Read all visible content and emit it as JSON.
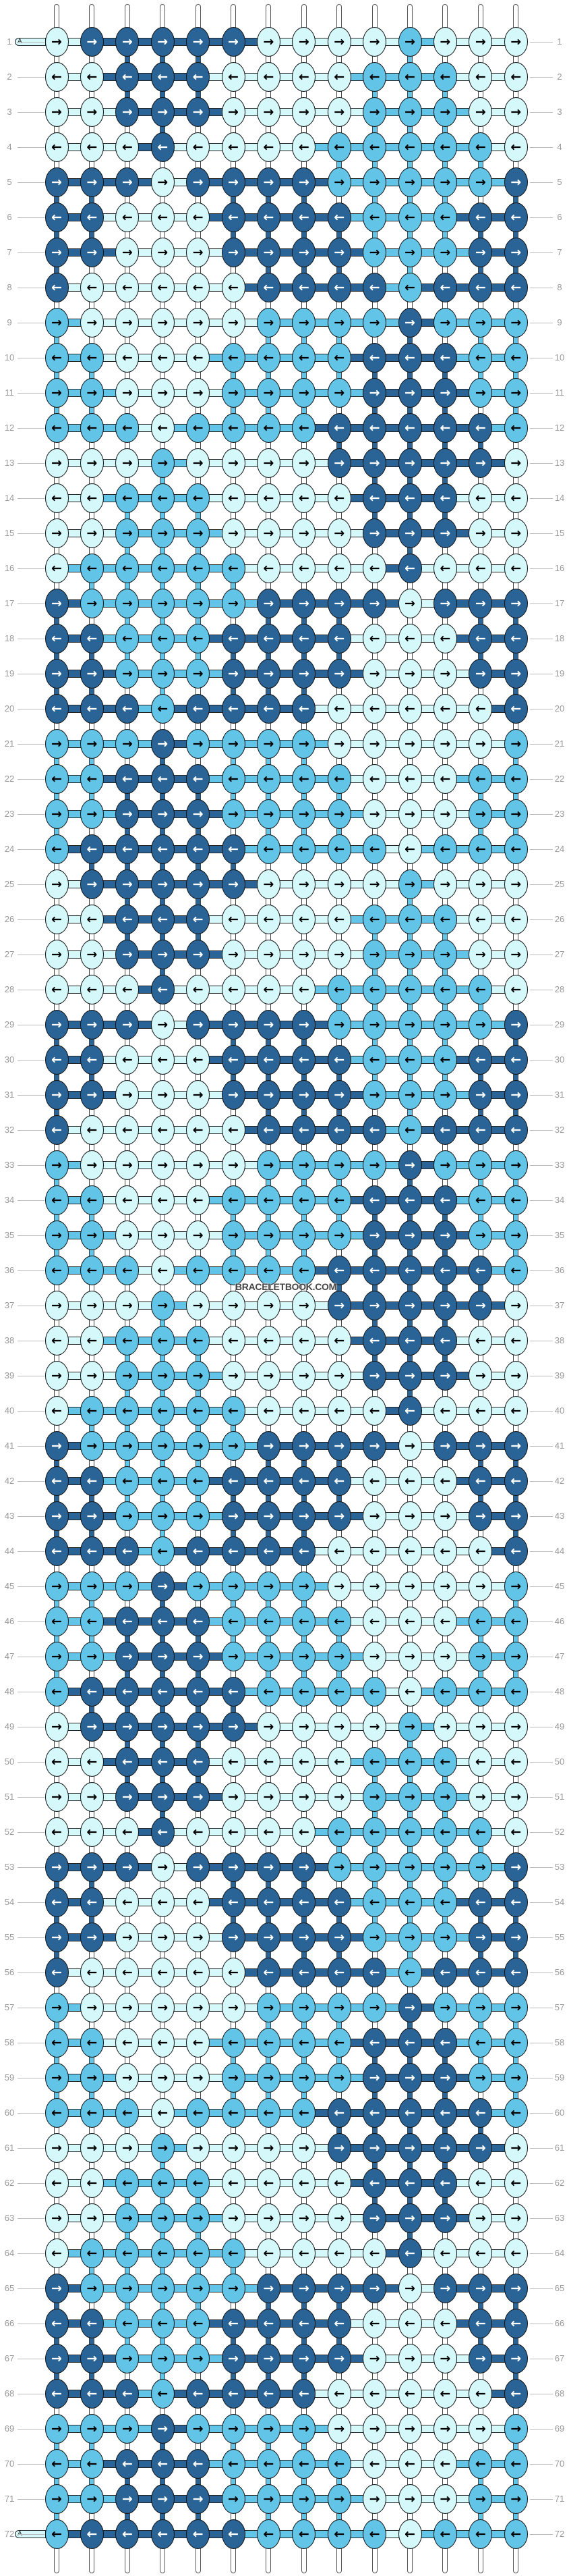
{
  "colors": {
    "L": "#d5f8fa",
    "M": "#62c4e6",
    "D": "#2a6496"
  },
  "arrow_colors": {
    "L": "#000000",
    "M": "#000000",
    "D": "#ffffff"
  },
  "arrows": {
    "R": "→",
    "L": "←"
  },
  "strand_label": "A",
  "watermark": "BRACELETBOOK.COM",
  "rows": [
    {
      "label": "1",
      "colors": "LDDDDDLLLLMLLL",
      "dir": "R"
    },
    {
      "label": "2",
      "colors": "LLDDDLLLLMMMLL",
      "dir": "L"
    },
    {
      "label": "3",
      "colors": "LLDDDLLLLMMMLL",
      "dir": "R"
    },
    {
      "label": "4",
      "colors": "LLLDLLLLMMMMML",
      "dir": "L"
    },
    {
      "label": "5",
      "colors": "DDDLDDDDMMMMMD",
      "dir": "R"
    },
    {
      "label": "6",
      "colors": "DDLLLDDDDMMMDD",
      "dir": "L"
    },
    {
      "label": "7",
      "colors": "DDLLLDDDDMMMDD",
      "dir": "R"
    },
    {
      "label": "8",
      "colors": "DLLLLLDDDDMDDD",
      "dir": "L"
    },
    {
      "label": "9",
      "colors": "MLLLLLMMMMDMMM",
      "dir": "R"
    },
    {
      "label": "10",
      "colors": "MMLLLMMMMDDDMM",
      "dir": "L"
    },
    {
      "label": "11",
      "colors": "MMLLLMMMMDDDMM",
      "dir": "R"
    },
    {
      "label": "12",
      "colors": "MMMLMMMMDDDDDM",
      "dir": "L"
    },
    {
      "label": "13",
      "colors": "LLLMLLLLDDDDDL",
      "dir": "R"
    },
    {
      "label": "14",
      "colors": "LLMMMLLLLDDDLL",
      "dir": "L"
    },
    {
      "label": "15",
      "colors": "LLMMMLLLLDDDLL",
      "dir": "R"
    },
    {
      "label": "16",
      "colors": "LMMMMMLLLLDLLL",
      "dir": "L"
    },
    {
      "label": "17",
      "colors": "DMMMMMDDDDLDDD",
      "dir": "R"
    },
    {
      "label": "18",
      "colors": "DDMMMDDDDLLLDD",
      "dir": "L"
    },
    {
      "label": "19",
      "colors": "DDMMMDDDDLLLDD",
      "dir": "R"
    },
    {
      "label": "20",
      "colors": "DDDMDDDDLLLLLD",
      "dir": "L"
    },
    {
      "label": "21",
      "colors": "MMMDMMMMLLLLLM",
      "dir": "R"
    },
    {
      "label": "22",
      "colors": "MMDDDMMMMLLLMM",
      "dir": "L"
    },
    {
      "label": "23",
      "colors": "MMDDDMMMMLLLMM",
      "dir": "R"
    },
    {
      "label": "24",
      "colors": "MDDDDDMMMMLMMM",
      "dir": "L"
    },
    {
      "label": "25",
      "colors": "LDDDDDLLLLMLLL",
      "dir": "R"
    },
    {
      "label": "26",
      "colors": "LLDDDLLLLMMMLL",
      "dir": "L"
    },
    {
      "label": "27",
      "colors": "LLDDDLLLLMMMLL",
      "dir": "R"
    },
    {
      "label": "28",
      "colors": "LLLDLLLLMMMMML",
      "dir": "L"
    },
    {
      "label": "29",
      "colors": "DDDLDDDDMMMMMD",
      "dir": "R"
    },
    {
      "label": "30",
      "colors": "DDLLLDDDDMMMDD",
      "dir": "L"
    },
    {
      "label": "31",
      "colors": "DDLLLDDDDMMMDD",
      "dir": "R"
    },
    {
      "label": "32",
      "colors": "DLLLLLDDDDMDDD",
      "dir": "L"
    },
    {
      "label": "33",
      "colors": "MLLLLLMMMMDMMM",
      "dir": "R"
    },
    {
      "label": "34",
      "colors": "MMLLLMMMMDDDMM",
      "dir": "L"
    },
    {
      "label": "35",
      "colors": "MMLLLMMMMDDDMM",
      "dir": "R"
    },
    {
      "label": "36",
      "colors": "MMMLMMMMDDDDDM",
      "dir": "L"
    },
    {
      "label": "37",
      "colors": "LLLMLLLLDDDDDL",
      "dir": "R"
    },
    {
      "label": "38",
      "colors": "LLMMMLLLLDDDLL",
      "dir": "L"
    },
    {
      "label": "39",
      "colors": "LLMMMLLLLDDDLL",
      "dir": "R"
    },
    {
      "label": "40",
      "colors": "LMMMMMLLLLDLLL",
      "dir": "L"
    },
    {
      "label": "41",
      "colors": "DMMMMMDDDDLDDD",
      "dir": "R"
    },
    {
      "label": "42",
      "colors": "DDMMMDDDDLLLDD",
      "dir": "L"
    },
    {
      "label": "43",
      "colors": "DDMMMDDDDLLLDD",
      "dir": "R"
    },
    {
      "label": "44",
      "colors": "DDDMDDDDLLLLLD",
      "dir": "L"
    },
    {
      "label": "45",
      "colors": "MMMDMMMMLLLLLM",
      "dir": "R"
    },
    {
      "label": "46",
      "colors": "MMDDDMMMMLLLMM",
      "dir": "L"
    },
    {
      "label": "47",
      "colors": "MMDDDMMMMLLLMM",
      "dir": "R"
    },
    {
      "label": "48",
      "colors": "MDDDDDMMMMLMMM",
      "dir": "L"
    },
    {
      "label": "49",
      "colors": "LDDDDDLLLLMLLL",
      "dir": "R"
    },
    {
      "label": "50",
      "colors": "LLDDDLLLLMMMLL",
      "dir": "L"
    },
    {
      "label": "51",
      "colors": "LLDDDLLLLMMMLL",
      "dir": "R"
    },
    {
      "label": "52",
      "colors": "LLLDLLLLMMMMML",
      "dir": "L"
    },
    {
      "label": "53",
      "colors": "DDDLDDDDMMMMMD",
      "dir": "R"
    },
    {
      "label": "54",
      "colors": "DDLLLDDDDMMMDD",
      "dir": "L"
    },
    {
      "label": "55",
      "colors": "DDLLLDDDDMMMDD",
      "dir": "R"
    },
    {
      "label": "56",
      "colors": "DLLLLLDDDDMDDD",
      "dir": "L"
    },
    {
      "label": "57",
      "colors": "MLLLLLMMMMDMMM",
      "dir": "R"
    },
    {
      "label": "58",
      "colors": "MMLLLMMMMDDDMM",
      "dir": "L"
    },
    {
      "label": "59",
      "colors": "MMLLLMMMMDDDMM",
      "dir": "R"
    },
    {
      "label": "60",
      "colors": "MMMLMMMMDDDDDM",
      "dir": "L"
    },
    {
      "label": "61",
      "colors": "LLLMLLLLDDDDDL",
      "dir": "R"
    },
    {
      "label": "62",
      "colors": "LLMMMLLLLDDDLL",
      "dir": "L"
    },
    {
      "label": "63",
      "colors": "LLMMMLLLLDDDLL",
      "dir": "R"
    },
    {
      "label": "64",
      "colors": "LMMMMMLLLLDLLL",
      "dir": "L"
    },
    {
      "label": "65",
      "colors": "DMMMMMDDDDLDDD",
      "dir": "R"
    },
    {
      "label": "66",
      "colors": "DDMMMDDDDLLLDD",
      "dir": "L"
    },
    {
      "label": "67",
      "colors": "DDMMMDDDDLLLDD",
      "dir": "R"
    },
    {
      "label": "68",
      "colors": "DDDMDDDDLLLLLD",
      "dir": "L"
    },
    {
      "label": "69",
      "colors": "MMMDMMMMLLLLLM",
      "dir": "R"
    },
    {
      "label": "70",
      "colors": "MMDDDMMMMLLLMM",
      "dir": "L"
    },
    {
      "label": "71",
      "colors": "MMDDDMMMMLLLMM",
      "dir": "R"
    },
    {
      "label": "72",
      "colors": "MDDDDDMMMMLMMM",
      "dir": "L"
    }
  ]
}
